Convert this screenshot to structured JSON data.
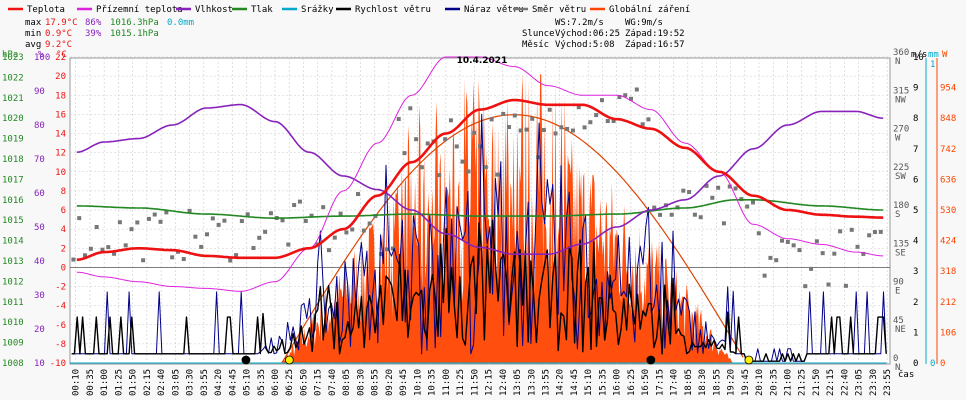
{
  "title": "10.4.2021",
  "legend": [
    {
      "label": "Teplota",
      "color": "#ee1111"
    },
    {
      "label": "Přízemní teplota",
      "color": "#dd22dd"
    },
    {
      "label": "Vlhkost",
      "color": "#8822bb"
    },
    {
      "label": "Tlak",
      "color": "#228822"
    },
    {
      "label": "Srážky",
      "color": "#00aacc"
    },
    {
      "label": "Rychlost větru",
      "color": "#000000"
    },
    {
      "label": "Náraz větru",
      "color": "#000088"
    },
    {
      "label": "Směr větru",
      "color": "#777777"
    },
    {
      "label": "Globální záření",
      "color": "#ff4400"
    }
  ],
  "stats": {
    "max": {
      "label": "max",
      "temp": "17.9°C",
      "hum": "86%",
      "press": "1016.3hPa",
      "rain": "0.0mm"
    },
    "min": {
      "label": "min",
      "temp": "0.9°C",
      "hum": "39%",
      "press": "1015.1hPa"
    },
    "avg": {
      "label": "avg",
      "temp": "9.2°C"
    }
  },
  "wind_info": {
    "ws": "WS:7.2m/s",
    "wg": "WG:9m/s"
  },
  "sun": {
    "label": "Slunce",
    "rise": "Východ:06:25",
    "set": "Západ:19:52"
  },
  "moon": {
    "label": "Měsíc",
    "rise": "Východ:5:08",
    "set": "Západ:16:57"
  },
  "axes_headers": {
    "hpa": "hPa",
    "pct": "%",
    "degc": "°C",
    "ms": "m/s",
    "mm": "mm",
    "w": "W",
    "time": "čas"
  },
  "colors": {
    "temp": "#ee1111",
    "dew": "#dd22dd",
    "hum": "#8822bb",
    "press": "#228822",
    "rain": "#00aacc",
    "wind": "#000000",
    "gust": "#000088",
    "dir": "#777777",
    "rad": "#ff4400",
    "grid": "#cccccc"
  },
  "chart_data": {
    "type": "line",
    "x_labels": [
      "00:10",
      "00:35",
      "01:00",
      "01:25",
      "01:50",
      "02:15",
      "02:40",
      "03:05",
      "03:30",
      "03:55",
      "04:20",
      "04:45",
      "05:10",
      "05:35",
      "06:00",
      "06:25",
      "06:50",
      "07:15",
      "07:40",
      "08:05",
      "08:30",
      "08:55",
      "09:20",
      "09:45",
      "10:10",
      "10:35",
      "11:00",
      "11:25",
      "11:50",
      "12:15",
      "12:40",
      "13:05",
      "13:30",
      "13:55",
      "14:20",
      "14:45",
      "15:10",
      "15:35",
      "16:00",
      "16:25",
      "16:50",
      "17:15",
      "17:40",
      "18:05",
      "18:30",
      "18:55",
      "19:20",
      "19:45",
      "20:10",
      "20:35",
      "21:00",
      "21:25",
      "21:50",
      "22:15",
      "22:40",
      "23:05",
      "23:30",
      "23:55"
    ],
    "axes": {
      "pressure_hpa": {
        "ticks": [
          1008,
          1009,
          1010,
          1011,
          1012,
          1013,
          1014,
          1015,
          1016,
          1017,
          1018,
          1019,
          1020,
          1021,
          1022,
          1023
        ]
      },
      "humidity_pct": {
        "ticks": [
          10,
          20,
          30,
          40,
          50,
          60,
          70,
          80,
          90,
          100
        ]
      },
      "temperature_c": {
        "ticks": [
          -10,
          -8,
          -6,
          -4,
          -2,
          0,
          2,
          4,
          6,
          8,
          10,
          12,
          14,
          16,
          18,
          20,
          22
        ]
      },
      "wind_dir": {
        "ticks": [
          "0 N",
          "45 NE",
          "90 E",
          "135 SE",
          "180 S",
          "225 SW",
          "270 W",
          "315 NW",
          "360 N"
        ]
      },
      "wind_ms": {
        "ticks": [
          0,
          1,
          2,
          3,
          4,
          5,
          6,
          7,
          8,
          9,
          10
        ]
      },
      "rain_mm": {
        "ticks": [
          0,
          1
        ]
      },
      "radiation_w": {
        "ticks": [
          0,
          106,
          212,
          318,
          424,
          530,
          636,
          742,
          848,
          954
        ]
      }
    },
    "series": [
      {
        "name": "Teplota",
        "unit": "°C",
        "points": [
          [
            0.2,
            0.8
          ],
          [
            1,
            1.6
          ],
          [
            2,
            2.0
          ],
          [
            3,
            1.8
          ],
          [
            4,
            1.2
          ],
          [
            5,
            1.0
          ],
          [
            6,
            1.0
          ],
          [
            7,
            2.0
          ],
          [
            8,
            4.0
          ],
          [
            9,
            7.5
          ],
          [
            10,
            11
          ],
          [
            11,
            14
          ],
          [
            12,
            16.5
          ],
          [
            13,
            17.5
          ],
          [
            14,
            17
          ],
          [
            15,
            17
          ],
          [
            16,
            15.5
          ],
          [
            17,
            14.5
          ],
          [
            18,
            12.5
          ],
          [
            19,
            10
          ],
          [
            20,
            7.5
          ],
          [
            21,
            6
          ],
          [
            22,
            5.5
          ],
          [
            23,
            5.3
          ],
          [
            23.8,
            5.2
          ]
        ]
      },
      {
        "name": "Přízemní teplota",
        "unit": "°C",
        "points": [
          [
            0.2,
            -0.5
          ],
          [
            1,
            -1
          ],
          [
            2,
            -1.5
          ],
          [
            3,
            -2
          ],
          [
            4,
            -2.2
          ],
          [
            5,
            -2.5
          ],
          [
            6,
            -1.5
          ],
          [
            7,
            2
          ],
          [
            8,
            8
          ],
          [
            9,
            13
          ],
          [
            10,
            18
          ],
          [
            11,
            22
          ],
          [
            12,
            22
          ],
          [
            13,
            21
          ],
          [
            14,
            19
          ],
          [
            15,
            18
          ],
          [
            16,
            18
          ],
          [
            17,
            16.5
          ],
          [
            18,
            13
          ],
          [
            19,
            10
          ],
          [
            20,
            4.5
          ],
          [
            21,
            3
          ],
          [
            22,
            2.4
          ],
          [
            23,
            1.6
          ],
          [
            23.8,
            1.2
          ]
        ]
      },
      {
        "name": "Vlhkost",
        "unit": "%",
        "points": [
          [
            0.2,
            72
          ],
          [
            1,
            75
          ],
          [
            2,
            76
          ],
          [
            3,
            80
          ],
          [
            4,
            85
          ],
          [
            5,
            86
          ],
          [
            6,
            81
          ],
          [
            7,
            72
          ],
          [
            8,
            65
          ],
          [
            9,
            61
          ],
          [
            10,
            55
          ],
          [
            11,
            48
          ],
          [
            12,
            44
          ],
          [
            13,
            42
          ],
          [
            14,
            42
          ],
          [
            15,
            45
          ],
          [
            16,
            50
          ],
          [
            17,
            55
          ],
          [
            18,
            58
          ],
          [
            19,
            65
          ],
          [
            20,
            73
          ],
          [
            21,
            80
          ],
          [
            22,
            84
          ],
          [
            23,
            84
          ],
          [
            23.8,
            82
          ]
        ]
      },
      {
        "name": "Tlak",
        "unit": "hPa",
        "points": [
          [
            0.2,
            1015.7
          ],
          [
            2,
            1015.6
          ],
          [
            4,
            1015.3
          ],
          [
            6,
            1015.1
          ],
          [
            8,
            1015.2
          ],
          [
            10,
            1015.3
          ],
          [
            12,
            1015.2
          ],
          [
            14,
            1015.2
          ],
          [
            16,
            1015.3
          ],
          [
            18,
            1015.6
          ],
          [
            19.5,
            1016.0
          ],
          [
            20,
            1016.0
          ],
          [
            22,
            1015.7
          ],
          [
            23.8,
            1015.5
          ]
        ]
      },
      {
        "name": "Srážky",
        "unit": "mm",
        "points": [
          [
            0,
            0
          ],
          [
            23.9,
            0
          ]
        ]
      }
    ]
  }
}
